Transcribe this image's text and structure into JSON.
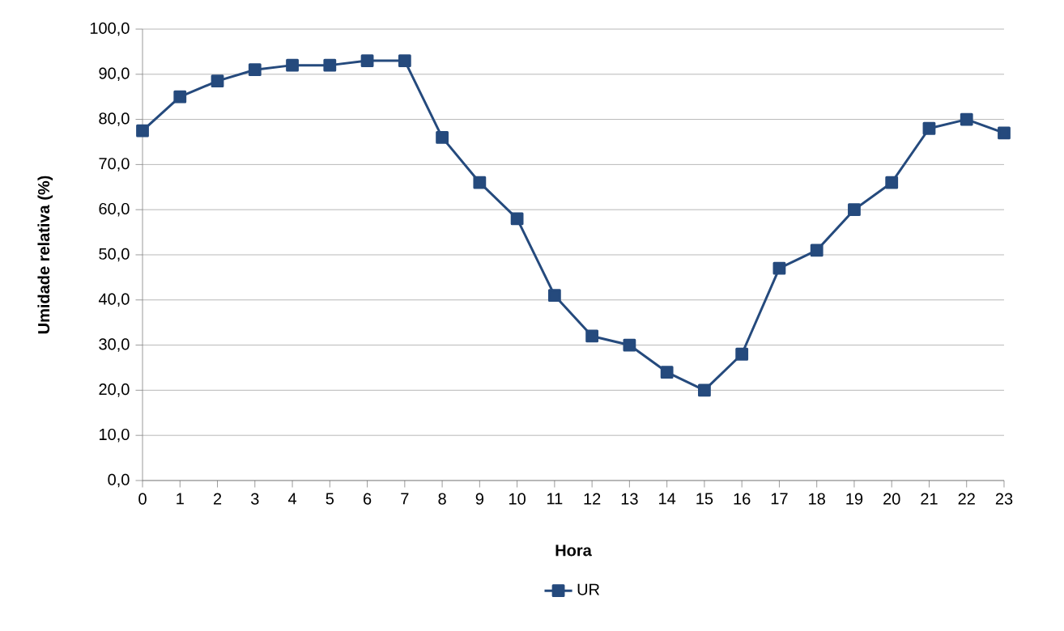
{
  "chart_data": {
    "type": "line",
    "xlabel": "Hora",
    "ylabel": "Umidade relativa (%)",
    "categories": [
      "0",
      "1",
      "2",
      "3",
      "4",
      "5",
      "6",
      "7",
      "8",
      "9",
      "10",
      "11",
      "12",
      "13",
      "14",
      "15",
      "16",
      "17",
      "18",
      "19",
      "20",
      "21",
      "22",
      "23"
    ],
    "series": [
      {
        "name": "UR",
        "color": "#254a7d",
        "values": [
          77.5,
          85,
          88.5,
          91,
          92,
          92,
          93,
          93,
          76,
          66,
          58,
          41,
          32,
          30,
          24,
          20,
          28,
          47,
          51,
          60,
          66,
          78,
          80,
          77
        ]
      }
    ],
    "ylim": [
      0,
      100
    ],
    "yticks": [
      {
        "value": 0,
        "label": "0,0"
      },
      {
        "value": 10,
        "label": "10,0"
      },
      {
        "value": 20,
        "label": "20,0"
      },
      {
        "value": 30,
        "label": "30,0"
      },
      {
        "value": 40,
        "label": "40,0"
      },
      {
        "value": 50,
        "label": "50,0"
      },
      {
        "value": 60,
        "label": "60,0"
      },
      {
        "value": 70,
        "label": "70,0"
      },
      {
        "value": 80,
        "label": "80,0"
      },
      {
        "value": 90,
        "label": "90,0"
      },
      {
        "value": 100,
        "label": "100,0"
      }
    ],
    "grid": "y",
    "legend": "bottom",
    "marker": "square",
    "line_style": "solid"
  }
}
